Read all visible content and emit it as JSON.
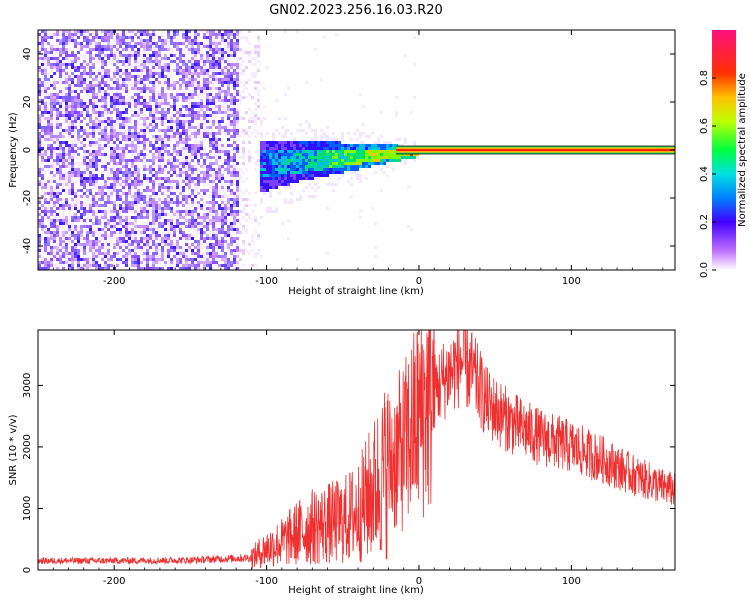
{
  "title": "GN02.2023.256.16.03.R20",
  "colorbar": {
    "label": "Normalized spectral amplitude",
    "ticks": [
      0.0,
      0.2,
      0.4,
      0.6,
      0.8
    ],
    "range": [
      0,
      1
    ]
  },
  "chart_data": [
    {
      "type": "heatmap",
      "xlabel": "Height of straight line (km)",
      "ylabel": "Frequency (Hz)",
      "xlim": [
        -250,
        168
      ],
      "ylim": [
        -50,
        50
      ],
      "xticks": [
        -200,
        -100,
        0,
        100
      ],
      "yticks": [
        -40,
        -20,
        0,
        20,
        40
      ],
      "ridge": [
        {
          "x": -120,
          "y": -8
        },
        {
          "x": -100,
          "y": -6
        },
        {
          "x": -80,
          "y": -4
        },
        {
          "x": -60,
          "y": -3
        },
        {
          "x": -40,
          "y": -2
        },
        {
          "x": -20,
          "y": -1
        },
        {
          "x": 0,
          "y": 0
        },
        {
          "x": 168,
          "y": 0
        }
      ],
      "noise_band": [
        -250,
        -120
      ]
    },
    {
      "type": "line",
      "xlabel": "Height of straight line (km)",
      "ylabel": "SNR (10 * v/v)",
      "xlim": [
        -250,
        168
      ],
      "ylim": [
        0,
        3900
      ],
      "xticks": [
        -200,
        -100,
        0,
        100
      ],
      "yticks": [
        0,
        1000,
        2000,
        3000
      ],
      "color": "#f03030",
      "series": [
        {
          "x": [
            -250,
            -200,
            -150,
            -110,
            -100,
            -90,
            -80,
            -70,
            -60,
            -50,
            -40,
            -30,
            -20,
            -10,
            0,
            10,
            20,
            28,
            35,
            45,
            60,
            80,
            100,
            120,
            140,
            160,
            168
          ],
          "y": [
            150,
            150,
            160,
            200,
            350,
            450,
            600,
            700,
            750,
            800,
            950,
            1300,
            1700,
            2000,
            2500,
            2900,
            3200,
            3400,
            3200,
            2700,
            2400,
            2150,
            2000,
            1800,
            1550,
            1350,
            1300
          ]
        }
      ]
    }
  ]
}
